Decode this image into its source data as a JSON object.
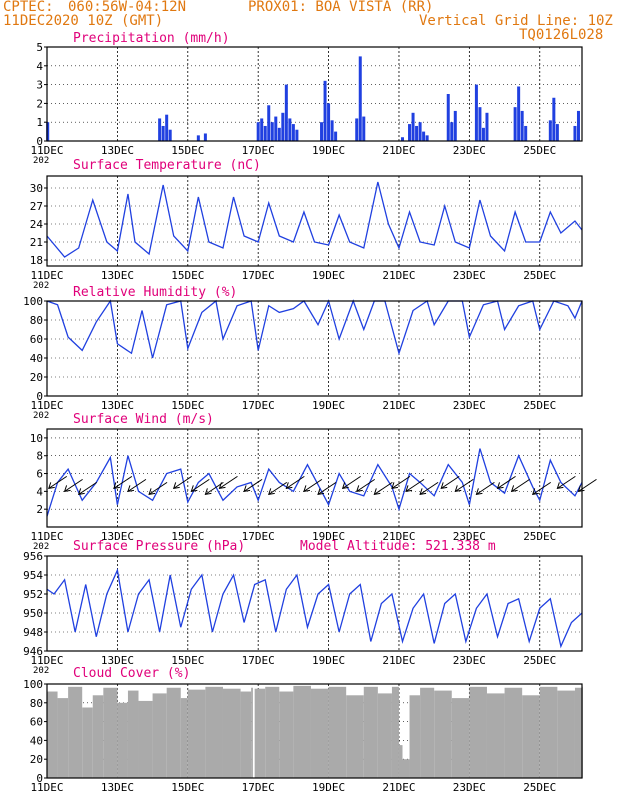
{
  "header": {
    "source": "CPTEC:",
    "coords": "060:56W-04:12N",
    "station": "PROX01: BOA VISTA (RR)",
    "init": "11DEC2020 10Z (GMT)",
    "grid_note": "Vertical Grid Line: 10Z",
    "model_code": "TQ0126L028"
  },
  "colors": {
    "header": "#e07810",
    "title": "#e0007a",
    "series": "#2040e0",
    "cloud": "#aaaaaa",
    "axis": "#000000"
  },
  "x_axis": {
    "tick_labels": [
      "11DEC",
      "13DEC",
      "15DEC",
      "17DEC",
      "19DEC",
      "21DEC",
      "23DEC",
      "25DEC"
    ],
    "tick_days": [
      11,
      13,
      15,
      17,
      19,
      21,
      23,
      25
    ],
    "year_fragment": "202",
    "range_days": [
      11,
      26.2
    ]
  },
  "chart_data": [
    {
      "type": "bar",
      "title": "Precipitation (mm/h)",
      "ylim": [
        0,
        5
      ],
      "yticks": [
        0,
        1,
        2,
        3,
        4,
        5
      ],
      "series": [
        {
          "x": [
            11.02,
            14.2,
            14.3,
            14.4,
            14.5,
            15.3,
            15.5,
            17.0,
            17.1,
            17.2,
            17.3,
            17.4,
            17.5,
            17.6,
            17.7,
            17.8,
            17.9,
            18.0,
            18.1,
            18.8,
            18.9,
            19.0,
            19.1,
            19.2,
            19.8,
            19.9,
            20.0,
            21.1,
            21.3,
            21.4,
            21.5,
            21.6,
            21.7,
            21.8,
            22.4,
            22.5,
            22.6,
            23.2,
            23.3,
            23.4,
            23.5,
            24.3,
            24.4,
            24.5,
            24.6,
            25.3,
            25.4,
            25.5,
            26.0,
            26.1
          ],
          "values": [
            1.0,
            1.2,
            0.8,
            1.4,
            0.6,
            0.3,
            0.4,
            1.0,
            1.2,
            0.8,
            1.9,
            1.0,
            1.3,
            0.7,
            1.5,
            3.0,
            1.2,
            0.9,
            0.6,
            1.0,
            3.2,
            2.0,
            1.1,
            0.5,
            1.2,
            4.5,
            1.3,
            0.2,
            0.9,
            1.5,
            0.8,
            1.0,
            0.5,
            0.3,
            2.5,
            1.0,
            1.6,
            3.0,
            1.8,
            0.7,
            1.5,
            1.8,
            2.9,
            1.6,
            0.8,
            1.1,
            2.3,
            0.9,
            0.8,
            1.6
          ]
        }
      ]
    },
    {
      "type": "line",
      "title": "Surface Temperature (nC)",
      "ylim": [
        17,
        32
      ],
      "yticks": [
        18,
        21,
        24,
        27,
        30
      ],
      "series": [
        {
          "x": [
            11,
            11.5,
            11.9,
            12.3,
            12.7,
            13,
            13.3,
            13.5,
            13.9,
            14.3,
            14.6,
            15,
            15.3,
            15.6,
            16,
            16.3,
            16.6,
            17,
            17.3,
            17.6,
            18,
            18.3,
            18.6,
            19,
            19.3,
            19.6,
            20,
            20.4,
            20.7,
            21,
            21.3,
            21.6,
            22,
            22.3,
            22.6,
            23,
            23.3,
            23.6,
            24,
            24.3,
            24.6,
            25,
            25.3,
            25.6,
            26,
            26.2
          ],
          "values": [
            22,
            18.5,
            20,
            28,
            21,
            19.5,
            29,
            21,
            19,
            30.5,
            22,
            19.5,
            28.5,
            21,
            20,
            28.5,
            22,
            21,
            27.5,
            22,
            21,
            26,
            21,
            20.5,
            25.5,
            21,
            20,
            31,
            24,
            20,
            26,
            21,
            20.5,
            27,
            21,
            20,
            28,
            22,
            19.5,
            26,
            21,
            21,
            26,
            22.5,
            24.5,
            23
          ]
        }
      ]
    },
    {
      "type": "line",
      "title": "Relative Humidity (%)",
      "ylim": [
        0,
        100
      ],
      "yticks": [
        0,
        20,
        40,
        60,
        80,
        100
      ],
      "series": [
        {
          "x": [
            11,
            11.3,
            11.6,
            12,
            12.4,
            12.8,
            13,
            13.4,
            13.7,
            14,
            14.4,
            14.8,
            15,
            15.4,
            15.8,
            16,
            16.4,
            16.8,
            17,
            17.3,
            17.6,
            18,
            18.3,
            18.7,
            19,
            19.3,
            19.7,
            20,
            20.3,
            20.6,
            21,
            21.4,
            21.8,
            22,
            22.4,
            22.8,
            23,
            23.4,
            23.8,
            24,
            24.4,
            24.8,
            25,
            25.4,
            25.8,
            26,
            26.2
          ],
          "values": [
            100,
            96,
            62,
            48,
            78,
            100,
            55,
            45,
            90,
            40,
            96,
            100,
            50,
            88,
            100,
            60,
            95,
            100,
            48,
            95,
            88,
            92,
            100,
            75,
            100,
            60,
            100,
            70,
            100,
            100,
            45,
            90,
            100,
            75,
            100,
            100,
            62,
            96,
            100,
            70,
            95,
            100,
            70,
            100,
            95,
            82,
            100
          ]
        }
      ]
    },
    {
      "type": "line",
      "title": "Surface Wind (m/s)",
      "ylim": [
        0,
        11
      ],
      "yticks": [
        2,
        4,
        6,
        8,
        10
      ],
      "series": [
        {
          "x": [
            11,
            11.3,
            11.6,
            12,
            12.4,
            12.8,
            13,
            13.3,
            13.6,
            14,
            14.4,
            14.8,
            15,
            15.3,
            15.6,
            16,
            16.4,
            16.8,
            17,
            17.3,
            17.6,
            18,
            18.4,
            18.8,
            19,
            19.3,
            19.6,
            20,
            20.4,
            20.8,
            21,
            21.3,
            21.6,
            22,
            22.4,
            22.8,
            23,
            23.3,
            23.6,
            24,
            24.4,
            24.8,
            25,
            25.3,
            25.6,
            26,
            26.2
          ],
          "values": [
            1.2,
            5,
            6.5,
            3,
            5,
            7.8,
            2.5,
            8,
            4,
            3,
            6,
            6.5,
            2.8,
            5,
            6,
            3,
            4.5,
            5,
            3,
            6.5,
            5,
            4,
            7,
            4,
            2.5,
            6,
            4,
            3.5,
            7,
            4.5,
            2,
            6,
            5,
            3.5,
            7,
            5,
            2.5,
            8.8,
            5,
            3.8,
            8,
            4.5,
            3,
            7.5,
            5,
            3.5,
            5
          ]
        }
      ],
      "wind_arrows": [
        11.05,
        11.5,
        11.9,
        12.9,
        13.3,
        13.9,
        14.6,
        15.1,
        15.5,
        15.9,
        16.6,
        17.3,
        17.8,
        18.3,
        18.7,
        19.4,
        19.8,
        20.3,
        20.8,
        21.2,
        21.6,
        22.2,
        22.6,
        23.2,
        23.8,
        24.2,
        24.8,
        25.5,
        26.1
      ]
    },
    {
      "type": "line",
      "title": "Surface Pressure (hPa)",
      "subtitle": "Model Altitude: 521.338  m",
      "ylim": [
        946,
        956
      ],
      "yticks": [
        946,
        948,
        950,
        952,
        954,
        956
      ],
      "series": [
        {
          "x": [
            11,
            11.2,
            11.5,
            11.8,
            12.1,
            12.4,
            12.7,
            13,
            13.3,
            13.6,
            13.9,
            14.2,
            14.5,
            14.8,
            15.1,
            15.4,
            15.7,
            16,
            16.3,
            16.6,
            16.9,
            17.2,
            17.5,
            17.8,
            18.1,
            18.4,
            18.7,
            19,
            19.3,
            19.6,
            19.9,
            20.2,
            20.5,
            20.8,
            21.1,
            21.4,
            21.7,
            22,
            22.3,
            22.6,
            22.9,
            23.2,
            23.5,
            23.8,
            24.1,
            24.4,
            24.7,
            25,
            25.3,
            25.6,
            25.9,
            26.2
          ],
          "values": [
            952.5,
            952,
            953.5,
            948,
            953,
            947.5,
            952,
            954.5,
            948,
            952,
            953.5,
            948,
            954,
            948.5,
            952.5,
            954,
            948,
            952,
            954,
            949,
            953,
            953.5,
            948,
            952.5,
            954,
            948.5,
            952,
            953,
            948,
            952,
            953,
            947,
            951,
            952,
            947,
            950.5,
            952,
            946.8,
            951,
            952,
            947,
            950.5,
            952,
            947.5,
            951,
            951.5,
            947,
            950.5,
            951.5,
            946.5,
            949,
            950
          ]
        }
      ]
    },
    {
      "type": "area",
      "title": "Cloud Cover (%)",
      "ylim": [
        0,
        100
      ],
      "yticks": [
        0,
        20,
        40,
        60,
        80,
        100
      ],
      "series": [
        {
          "x": [
            11,
            11.3,
            11.6,
            12,
            12.3,
            12.6,
            13,
            13.3,
            13.6,
            14,
            14.4,
            14.8,
            15,
            15.5,
            16,
            16.5,
            16.8,
            16.85,
            16.9,
            17.2,
            17.6,
            18,
            18.5,
            19,
            19.5,
            20,
            20.4,
            20.8,
            21,
            21.1,
            21.3,
            21.6,
            22,
            22.5,
            23,
            23.5,
            24,
            24.5,
            25,
            25.5,
            26,
            26.2
          ],
          "values": [
            92,
            85,
            97,
            75,
            88,
            96,
            80,
            93,
            82,
            90,
            96,
            85,
            94,
            97,
            95,
            92,
            96,
            0,
            95,
            97,
            92,
            98,
            95,
            97,
            88,
            97,
            90,
            97,
            35,
            20,
            88,
            96,
            93,
            85,
            97,
            90,
            96,
            88,
            97,
            93,
            96,
            97
          ]
        }
      ]
    }
  ],
  "panel_labels": {
    "precip": "Precipitation (mm/h)",
    "temp": "Surface Temperature (nC)",
    "rh": "Relative Humidity (%)",
    "wind": "Surface Wind (m/s)",
    "pres": "Surface Pressure (hPa)",
    "pres_sub": "Model Altitude: 521.338  m",
    "cloud": "Cloud Cover (%)"
  }
}
